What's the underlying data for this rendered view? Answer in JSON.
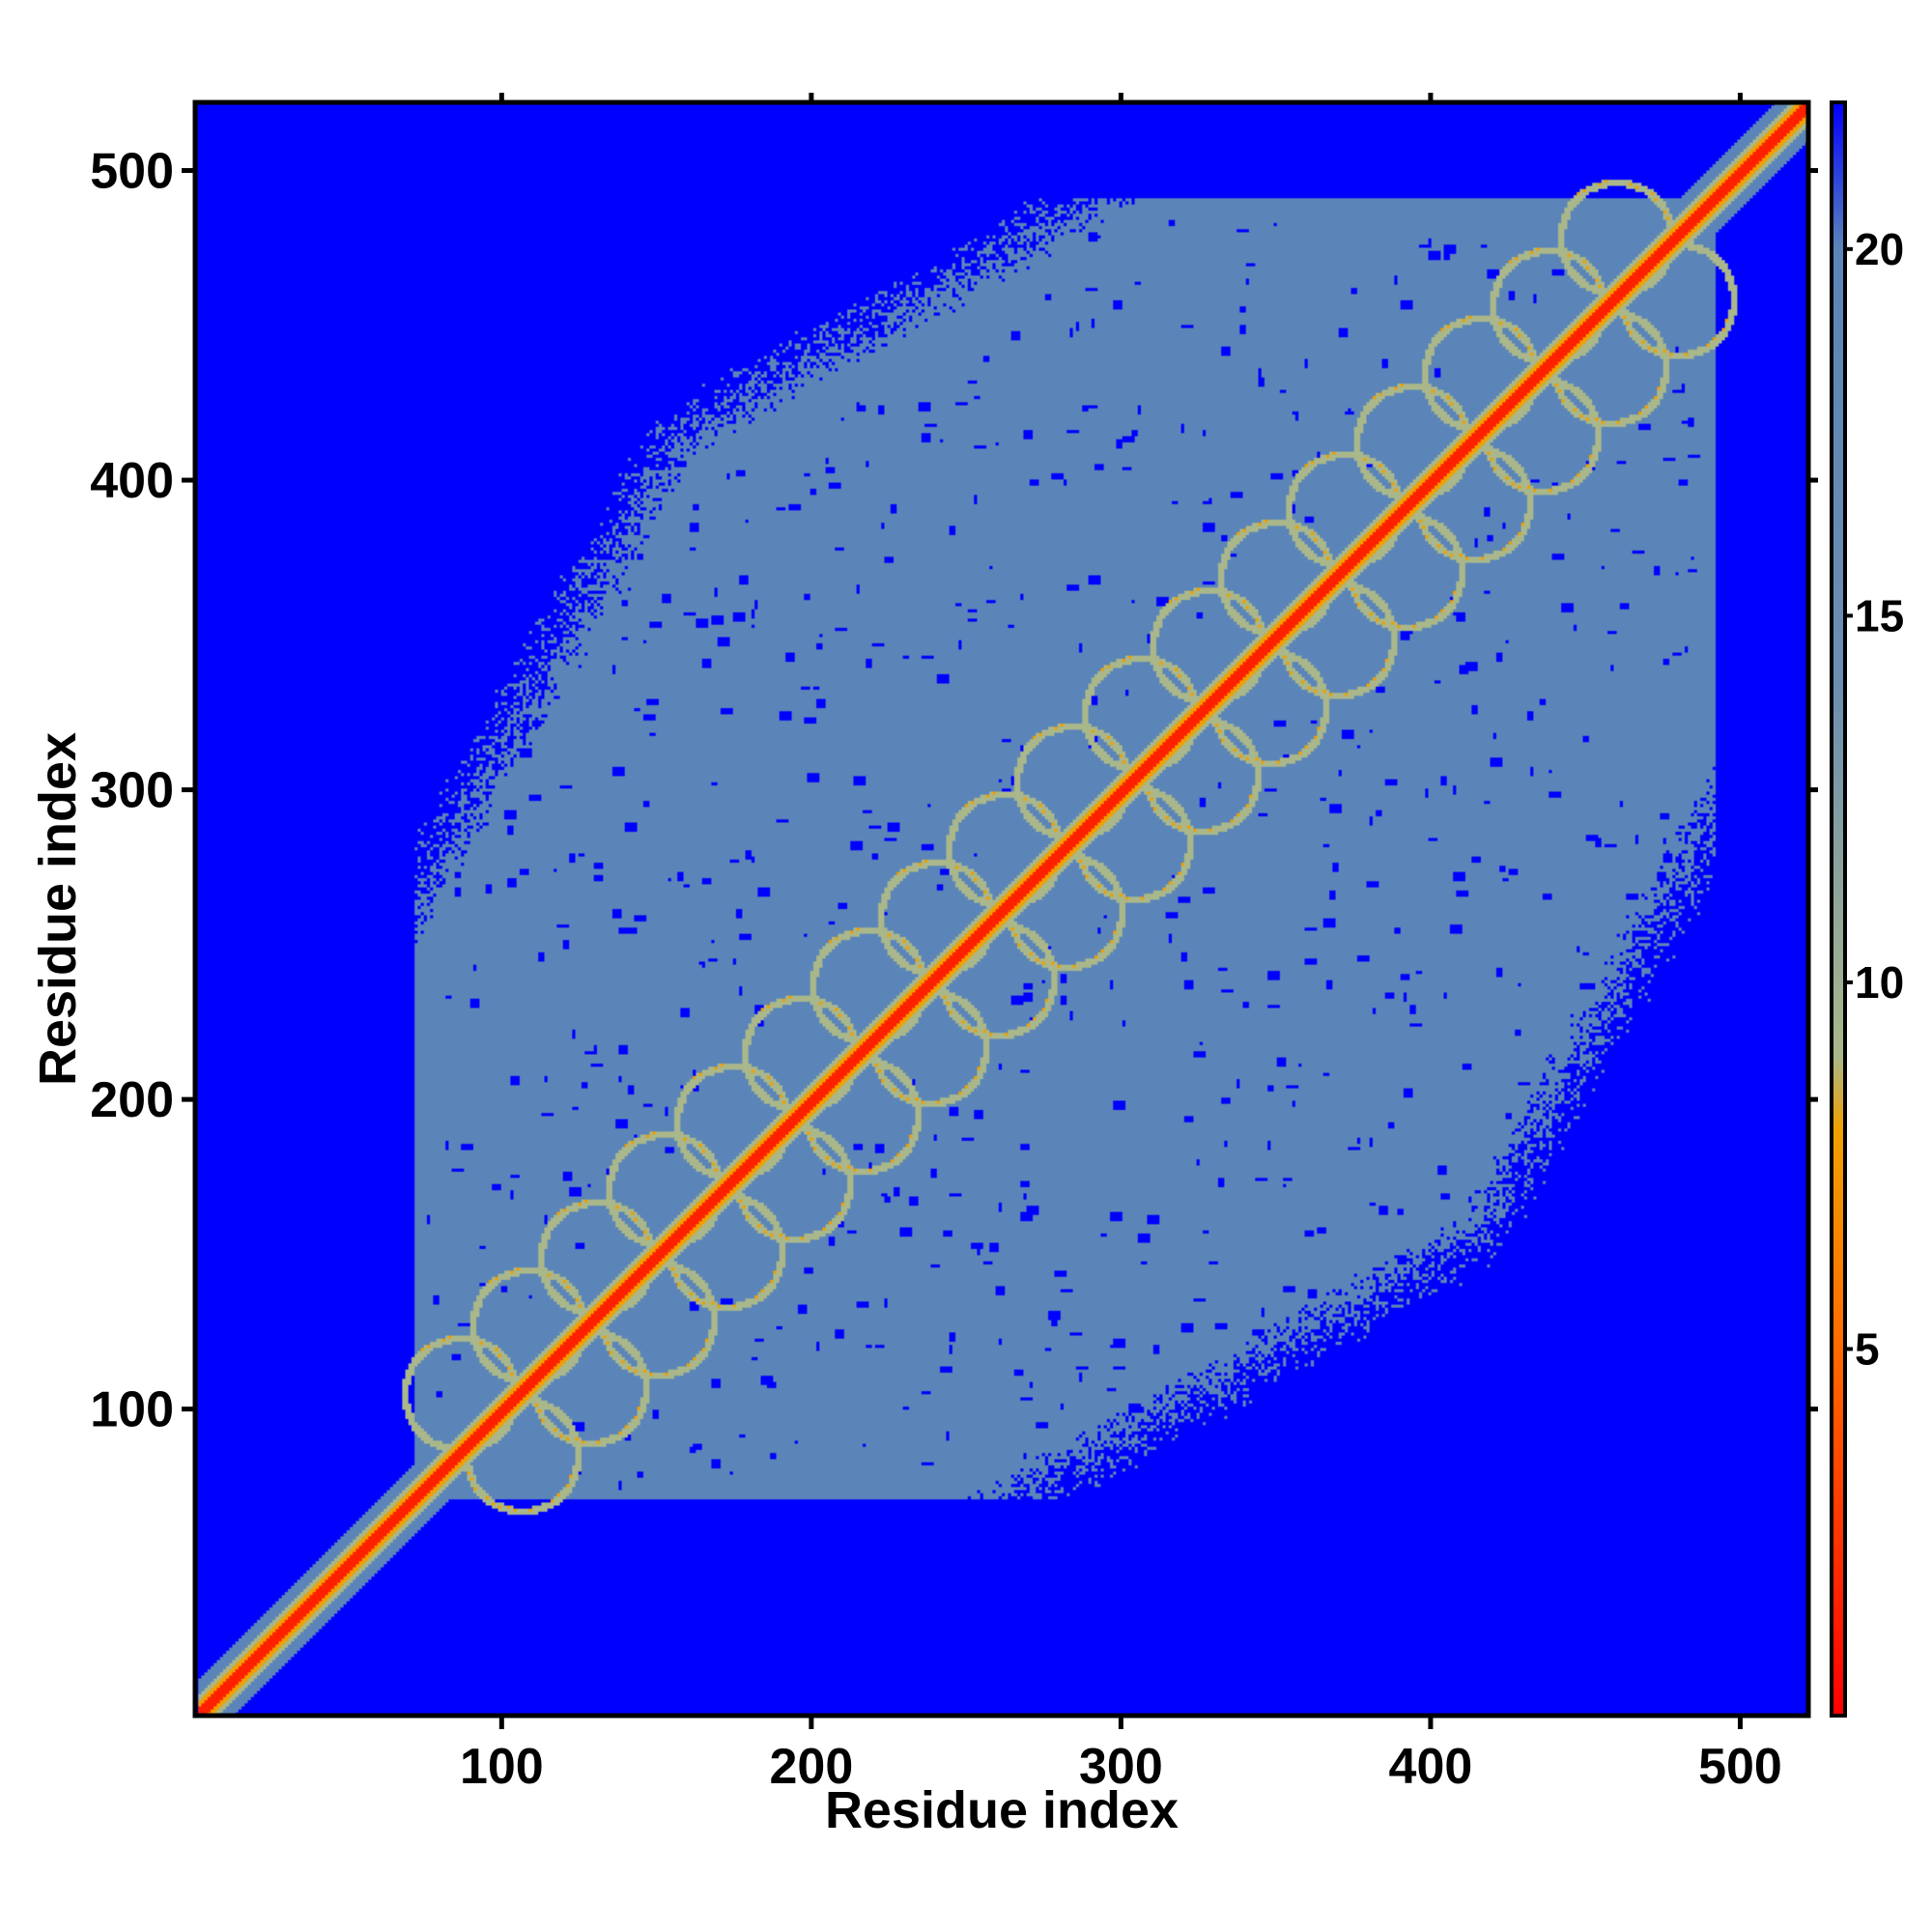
{
  "chart_data": {
    "type": "heatmap",
    "title": "",
    "xlabel": "Residue index",
    "ylabel": "Residue index",
    "xlim": [
      1,
      522
    ],
    "ylim": [
      1,
      522
    ],
    "x_ticks": [
      100,
      200,
      300,
      400,
      500
    ],
    "y_ticks": [
      100,
      200,
      300,
      400,
      500
    ],
    "colorbar": {
      "ticks": [
        5,
        10,
        15,
        20
      ],
      "range": [
        0,
        22
      ],
      "stops": [
        {
          "value": 0,
          "color": "#ff0000"
        },
        {
          "value": 5,
          "color": "#ff6a00"
        },
        {
          "value": 8,
          "color": "#f0a000"
        },
        {
          "value": 9,
          "color": "#a9b78a"
        },
        {
          "value": 14,
          "color": "#6d8fb0"
        },
        {
          "value": 20,
          "color": "#5b85b8"
        },
        {
          "value": 22,
          "color": "#0000ff"
        }
      ]
    },
    "description_values": {
      "background_value": 22,
      "cloud_value": 18,
      "diagonal_value": 2,
      "cloud_band_low_residue": [
        60,
        72
      ],
      "cloud_band_high_residue": [
        490,
        520
      ],
      "structured_start_residue": 75,
      "structured_end_residue": 485
    },
    "colors": {
      "background": "#0000ff",
      "cloud": "#5b85b8",
      "contact_mid": "#a9b78a",
      "contact_near": "#f0a000",
      "diagonal": "#ff2000"
    }
  }
}
